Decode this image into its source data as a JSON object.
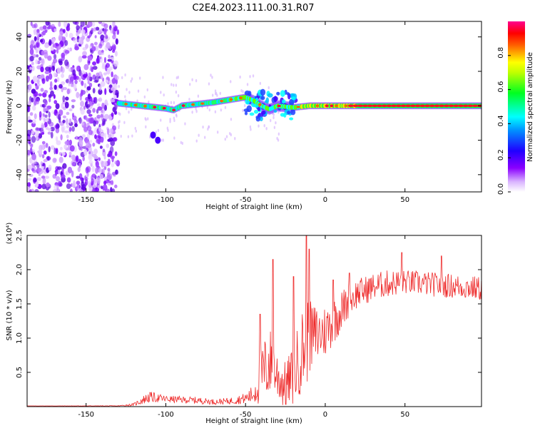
{
  "title": "C2E4.2023.111.00.31.R07",
  "colors": {
    "snr_line": "#ee2a2a",
    "axis": "#000000",
    "spectro_background": "#ffffff"
  },
  "chart_data": [
    {
      "type": "heatmap",
      "xlabel": "Height of straight line (km)",
      "ylabel": "Frequency (Hz)",
      "xlim": [
        -187,
        98
      ],
      "ylim": [
        -50,
        49
      ],
      "xticks": [
        -150,
        -100,
        -50,
        0,
        50
      ],
      "yticks": [
        -40,
        -20,
        0,
        20,
        40
      ],
      "colorbar": {
        "label": "Normalized spectral amplitude",
        "range": [
          0,
          1
        ],
        "ticks": [
          "0.0",
          "0.2",
          "0.4",
          "0.6",
          "0.8"
        ],
        "colormap": [
          "#ffffff",
          "#8a00ff",
          "#0000ff",
          "#00ffff",
          "#00ff00",
          "#ffff00",
          "#ff0000",
          "#ff00a0"
        ]
      },
      "features": {
        "noise_region_x": [
          -187,
          -130
        ],
        "carrier_trace": [
          [
            -130,
            1.5
          ],
          [
            -115,
            0
          ],
          [
            -100,
            -1.5
          ],
          [
            -95,
            -2.5
          ],
          [
            -90,
            0
          ],
          [
            -80,
            1
          ],
          [
            -70,
            2
          ],
          [
            -60,
            3.5
          ],
          [
            -50,
            5
          ],
          [
            -45,
            3
          ],
          [
            -40,
            0
          ],
          [
            -35,
            -2
          ],
          [
            -30,
            0
          ],
          [
            -20,
            -1
          ],
          [
            -10,
            0
          ],
          [
            0,
            0
          ],
          [
            20,
            0
          ],
          [
            50,
            0
          ],
          [
            98,
            0
          ]
        ],
        "side_blobs": [
          [
            -108,
            -17
          ],
          [
            -105,
            -20
          ]
        ]
      }
    },
    {
      "type": "line",
      "xlabel": "Height of straight line (km)",
      "ylabel": "SNR (10 * v/v)",
      "y_multiplier": "(x10⁴)",
      "xlim": [
        -187,
        98
      ],
      "ylim": [
        0,
        2.5
      ],
      "xticks": [
        -150,
        -100,
        -50,
        0,
        50
      ],
      "yticks": [
        "0.5",
        "1.0",
        "1.5",
        "2.0",
        "2.5"
      ],
      "envelope": {
        "x": [
          -187,
          -130,
          -120,
          -115,
          -110,
          -100,
          -90,
          -80,
          -70,
          -60,
          -50,
          -45,
          -40,
          -35,
          -30,
          -25,
          -20,
          -15,
          -12,
          -10,
          -5,
          0,
          5,
          10,
          15,
          20,
          30,
          40,
          50,
          60,
          70,
          80,
          90,
          98
        ],
        "mean": [
          0.01,
          0.01,
          0.03,
          0.09,
          0.14,
          0.11,
          0.1,
          0.09,
          0.07,
          0.08,
          0.12,
          0.18,
          0.45,
          0.65,
          0.45,
          0.3,
          0.45,
          0.8,
          0.95,
          1.0,
          1.05,
          1.1,
          1.25,
          1.4,
          1.55,
          1.65,
          1.75,
          1.8,
          1.82,
          1.8,
          1.78,
          1.76,
          1.74,
          1.72
        ],
        "spread": [
          0.0,
          0.005,
          0.02,
          0.06,
          0.08,
          0.05,
          0.05,
          0.05,
          0.04,
          0.05,
          0.08,
          0.15,
          0.45,
          0.55,
          0.4,
          0.35,
          0.45,
          0.6,
          0.7,
          0.55,
          0.45,
          0.4,
          0.35,
          0.3,
          0.25,
          0.22,
          0.2,
          0.2,
          0.18,
          0.18,
          0.18,
          0.18,
          0.18,
          0.18
        ]
      },
      "peaks": [
        [
          -41,
          1.35
        ],
        [
          -33,
          2.15
        ],
        [
          -12,
          2.5
        ],
        [
          -20,
          1.9
        ],
        [
          -10,
          2.3
        ],
        [
          5,
          1.85
        ],
        [
          15,
          1.95
        ],
        [
          48,
          2.25
        ],
        [
          73,
          2.2
        ]
      ]
    }
  ]
}
